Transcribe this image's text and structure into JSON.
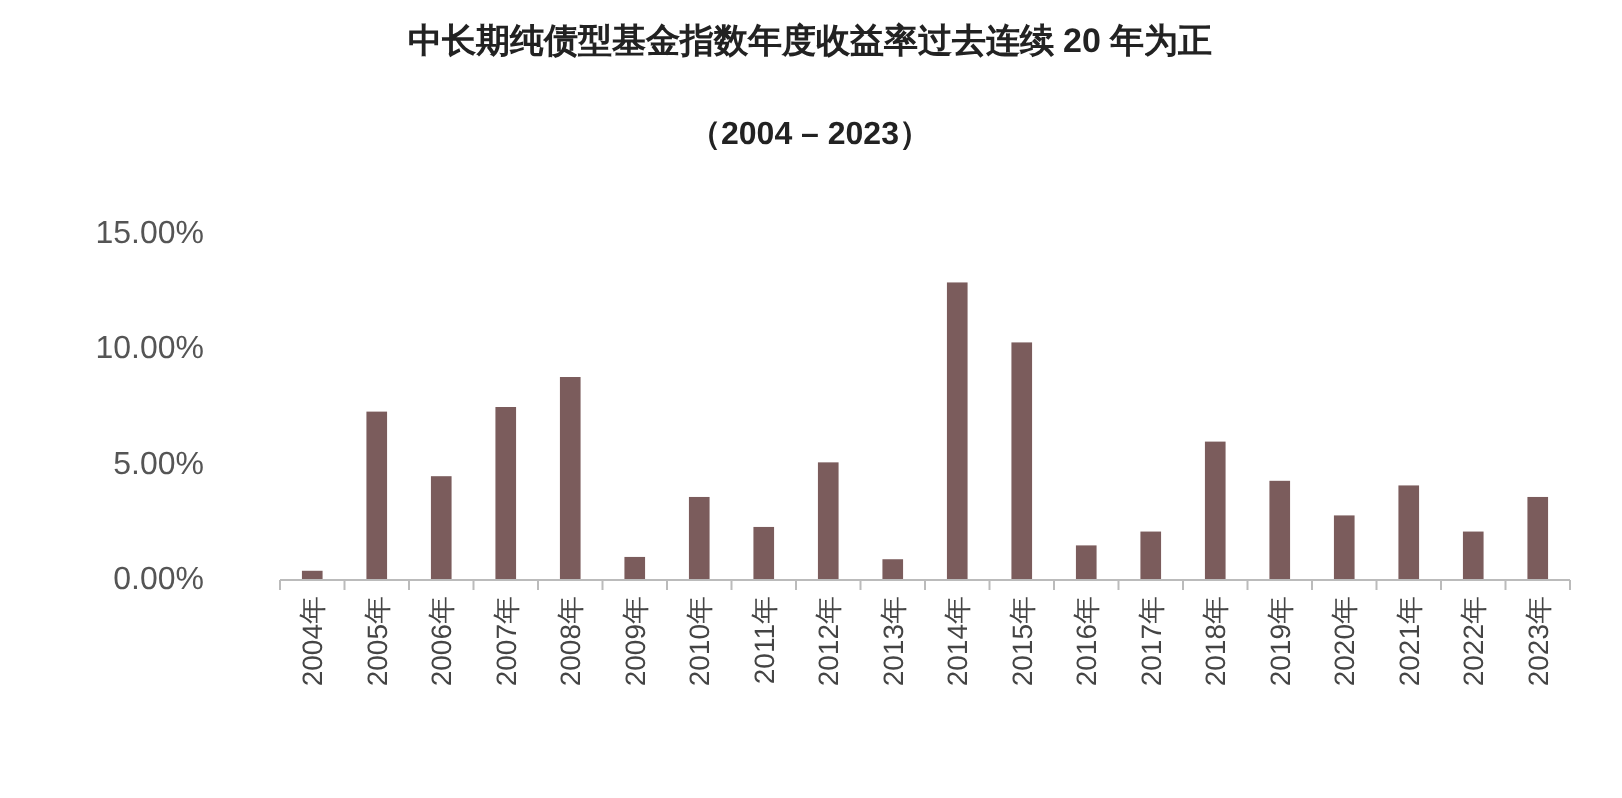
{
  "chart_data": {
    "type": "bar",
    "title": "中长期纯债型基金指数年度收益率过去连续 20 年为正",
    "subtitle": "（2004 – 2023）",
    "categories": [
      "2004年",
      "2005年",
      "2006年",
      "2007年",
      "2008年",
      "2009年",
      "2010年",
      "2011年",
      "2012年",
      "2013年",
      "2014年",
      "2015年",
      "2016年",
      "2017年",
      "2018年",
      "2019年",
      "2020年",
      "2021年",
      "2022年",
      "2023年"
    ],
    "values": [
      0.4,
      7.3,
      4.5,
      7.5,
      8.8,
      1.0,
      3.6,
      2.3,
      5.1,
      0.9,
      12.9,
      10.3,
      1.5,
      2.1,
      6.0,
      4.3,
      2.8,
      4.1,
      2.1,
      3.6
    ],
    "color": "#7b5c5c",
    "ylim": [
      0,
      15
    ],
    "yticks": [
      {
        "value": 0,
        "label": "0.00%"
      },
      {
        "value": 5,
        "label": "5.00%"
      },
      {
        "value": 10,
        "label": "10.00%"
      },
      {
        "value": 15,
        "label": "15.00%"
      }
    ],
    "grid": false
  }
}
